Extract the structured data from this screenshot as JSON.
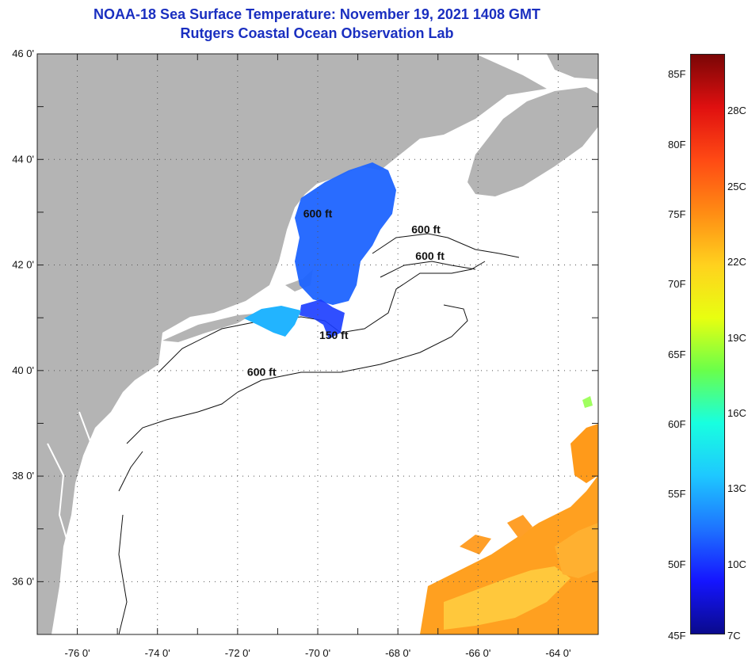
{
  "title": {
    "line1": "NOAA-18 Sea Surface Temperature:  November 19, 2021 1408 GMT",
    "line2": "Rutgers Coastal Ocean Observation Lab"
  },
  "map": {
    "lon_range": [
      -77,
      -63
    ],
    "lat_range": [
      35,
      46
    ],
    "lat_labels": [
      "46 0'",
      "44 0'",
      "42 0'",
      "40 0'",
      "38 0'",
      "36 0'"
    ],
    "lat_values": [
      46,
      44,
      42,
      40,
      38,
      36
    ],
    "lon_labels": [
      "-76 0'",
      "-74 0'",
      "-72 0'",
      "-70 0'",
      "-68 0'",
      "-66 0'",
      "-64 0'"
    ],
    "lon_values": [
      -76,
      -74,
      -72,
      -70,
      -68,
      -66,
      -64
    ],
    "contour_labels": [
      {
        "text": "600 ft",
        "lon": -70.0,
        "lat": 42.9
      },
      {
        "text": "600 ft",
        "lon": -67.3,
        "lat": 42.6
      },
      {
        "text": "600 ft",
        "lon": -67.2,
        "lat": 42.1
      },
      {
        "text": "150 ft",
        "lon": -69.6,
        "lat": 40.6
      },
      {
        "text": "600 ft",
        "lon": -71.4,
        "lat": 39.9
      }
    ],
    "land_color": "#b4b4b4",
    "ocean_color": "#ffffff"
  },
  "colorbar": {
    "f_labels": [
      "85F",
      "80F",
      "75F",
      "70F",
      "65F",
      "60F",
      "55F",
      "50F",
      "45F"
    ],
    "f_values": [
      85,
      80,
      75,
      70,
      65,
      60,
      55,
      50,
      45
    ],
    "c_labels": [
      "28C",
      "25C",
      "22C",
      "19C",
      "16C",
      "13C",
      "10C",
      "7C"
    ],
    "c_values": [
      28,
      25,
      22,
      19,
      16,
      13,
      10,
      7
    ],
    "range_f": [
      45,
      86.5
    ],
    "colors": [
      "#0a0a8c",
      "#1515ff",
      "#1e74ff",
      "#1ec8ff",
      "#18ffe0",
      "#6aff4a",
      "#e8ff10",
      "#ffd21e",
      "#ff8c14",
      "#ff4a14",
      "#e01010",
      "#7a0606"
    ]
  }
}
